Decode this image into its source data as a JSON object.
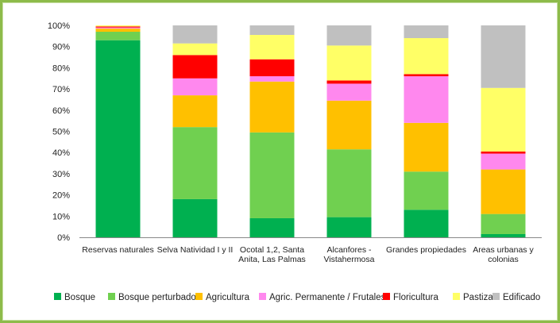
{
  "chart_data": {
    "type": "bar",
    "stacked": true,
    "normalized": true,
    "categories": [
      [
        "Reservas naturales"
      ],
      [
        "Selva Natividad I y II"
      ],
      [
        "Ocotal 1,2, Santa",
        "Anita, Las Palmas"
      ],
      [
        "Alcanfores -",
        "Vistahermosa"
      ],
      [
        "Grandes propiedades"
      ],
      [
        "Areas urbanas y",
        "colonias"
      ]
    ],
    "series": [
      {
        "name": "Bosque",
        "color": "#00b050",
        "values": [
          93,
          18,
          9,
          9.5,
          13,
          1.5
        ]
      },
      {
        "name": "Bosque perturbado",
        "color": "#70d050",
        "values": [
          4,
          34,
          40.5,
          32,
          18,
          9.5
        ]
      },
      {
        "name": "Agricultura",
        "color": "#ffc000",
        "values": [
          1.5,
          15,
          24,
          23,
          23,
          21
        ]
      },
      {
        "name": "Agric. Permanente / Frutales",
        "color": "#ff88ee",
        "values": [
          0.5,
          8,
          2.5,
          8,
          22,
          7.5
        ]
      },
      {
        "name": "Floricultura",
        "color": "#ff0000",
        "values": [
          0.5,
          11,
          8,
          1.5,
          1,
          1
        ]
      },
      {
        "name": "Pastizal",
        "color": "#ffff66",
        "values": [
          0.5,
          5.5,
          11.5,
          16.5,
          17,
          30
        ]
      },
      {
        "name": "Edificado",
        "color": "#c0c0c0",
        "values": [
          0,
          8.5,
          4.5,
          9.5,
          6,
          29.5
        ]
      }
    ],
    "yticks": [
      "0%",
      "10%",
      "20%",
      "30%",
      "40%",
      "50%",
      "60%",
      "70%",
      "80%",
      "90%",
      "100%"
    ],
    "ylim": [
      0,
      100
    ],
    "grid": false,
    "legend_position": "bottom"
  }
}
